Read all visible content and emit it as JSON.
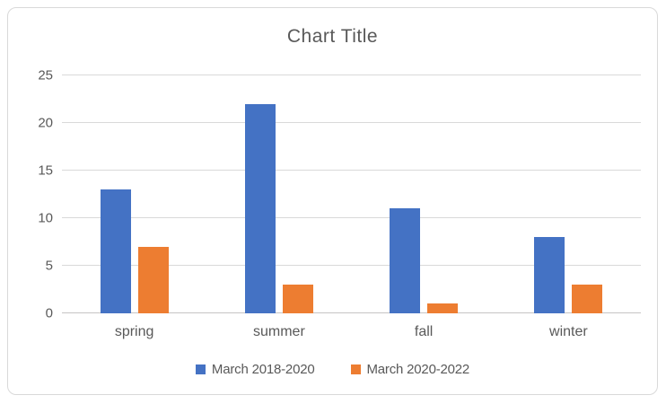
{
  "chart_data": {
    "type": "bar",
    "title": "Chart Title",
    "categories": [
      "spring",
      "summer",
      "fall",
      "winter"
    ],
    "series": [
      {
        "name": "March 2018-2020",
        "color": "#4472c4",
        "values": [
          13,
          22,
          11,
          8
        ]
      },
      {
        "name": "March 2020-2022",
        "color": "#ed7d31",
        "values": [
          7,
          3,
          1,
          3
        ]
      }
    ],
    "xlabel": "",
    "ylabel": "",
    "ylim": [
      0,
      25
    ],
    "yticks": [
      0,
      5,
      10,
      15,
      20,
      25
    ],
    "grid": "horizontal",
    "legend_position": "bottom"
  },
  "style": {
    "text_color": "#595959",
    "gridline_color": "#d9d9d9",
    "axis_line_color": "#c6c4c4",
    "frame_border_color": "#d9d9d9",
    "background": "#ffffff"
  }
}
